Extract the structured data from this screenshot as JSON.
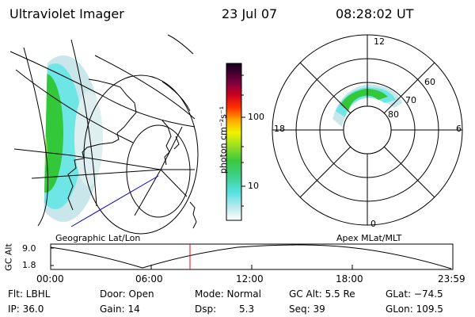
{
  "header": {
    "title": "Ultraviolet Imager",
    "date": "23 Jul 07",
    "time": "08:28:02 UT"
  },
  "colorbar": {
    "ticks": [
      "100",
      "10"
    ],
    "unit_label": "photon cm⁻²s⁻¹"
  },
  "polar": {
    "mlt_labels": [
      "12",
      "18",
      "6",
      "0"
    ],
    "lat_labels": [
      "60",
      "70",
      "80"
    ]
  },
  "panel_labels": {
    "geo": "Geographic Lat/Lon",
    "apex": "Apex MLat/MLT"
  },
  "altitude_plot": {
    "ylabel": "GC Alt",
    "yticks": [
      "9.0",
      "1.8"
    ],
    "xticks": [
      "00:00",
      "06:00",
      "12:00",
      "18:00",
      "23:59"
    ],
    "marker_time": "08:28:02"
  },
  "info": {
    "flt": "Flt: LBHL",
    "door": "Door: Open",
    "mode": "Mode: Normal",
    "gc_alt": "GC Alt: 5.5 Re",
    "glat": "GLat: −74.5",
    "ip": "IP: 36.0",
    "gain": "Gain: 14",
    "dsp_label": "Dsp:",
    "dsp_value": "5.3",
    "seq": "Seq: 39",
    "glon": "GLon: 109.5"
  },
  "colors": {
    "aurora_green": "#33c83a",
    "aurora_cyan": "#6ee6e6",
    "aurora_light": "#c9e7ea",
    "marker_red": "#ff0000",
    "track_blue": "#0000c8"
  }
}
